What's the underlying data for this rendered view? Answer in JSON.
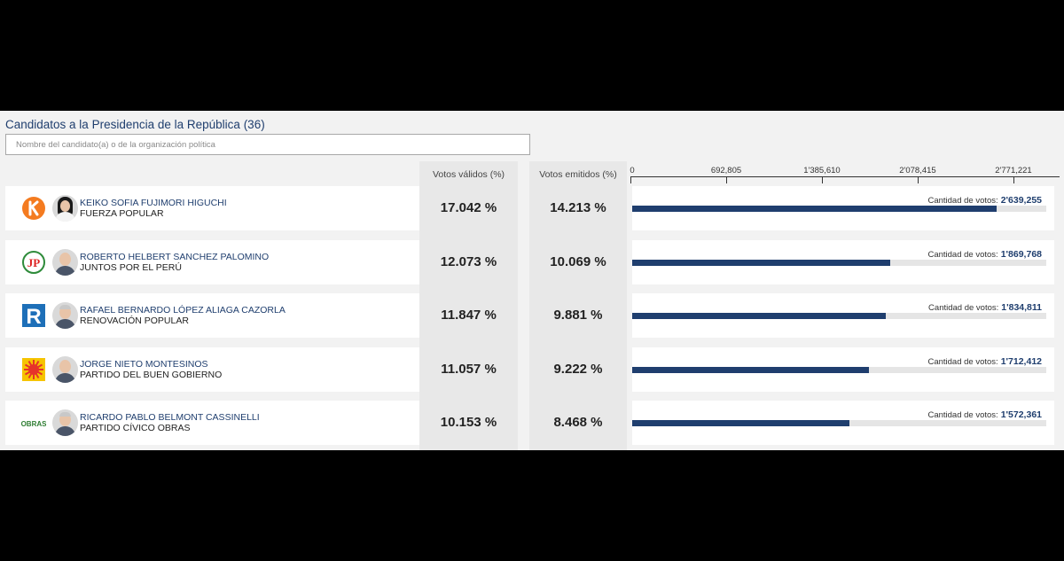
{
  "header": {
    "title": "Candidatos a la Presidencia de la República",
    "count": "(36)"
  },
  "search": {
    "placeholder": "Nombre del candidato(a) o de la organización política"
  },
  "columns": {
    "validos": "Votos válidos (%)",
    "emitidos": "Votos emitidos (%)"
  },
  "axis": {
    "max": 2771221,
    "ticks": [
      {
        "value": 0,
        "label": "0"
      },
      {
        "value": 692805,
        "label": "692,805"
      },
      {
        "value": 1385610,
        "label": "1'385,610"
      },
      {
        "value": 2078415,
        "label": "2'078,415"
      },
      {
        "value": 2771221,
        "label": "2'771,221"
      }
    ]
  },
  "votes_label": "Cantidad de votos:",
  "candidates": [
    {
      "name": "KEIKO SOFIA FUJIMORI HIGUCHI",
      "party": "FUERZA POPULAR",
      "validos": "17.042 %",
      "emitidos": "14.213 %",
      "votes": 2639255,
      "votes_label": "2'639,255",
      "logo_icon": "fuerza-popular-k-icon",
      "photo": "female"
    },
    {
      "name": "ROBERTO HELBERT SANCHEZ PALOMINO",
      "party": "JUNTOS POR EL PERÚ",
      "validos": "12.073 %",
      "emitidos": "10.069 %",
      "votes": 1869768,
      "votes_label": "1'869,768",
      "logo_icon": "juntos-por-el-peru-jp-icon",
      "photo": "male"
    },
    {
      "name": "RAFAEL BERNARDO LÓPEZ ALIAGA CAZORLA",
      "party": "RENOVACIÓN POPULAR",
      "validos": "11.847 %",
      "emitidos": "9.881 %",
      "votes": 1834811,
      "votes_label": "1'834,811",
      "logo_icon": "renovacion-popular-r-icon",
      "photo": "older"
    },
    {
      "name": "JORGE NIETO MONTESINOS",
      "party": "PARTIDO DEL BUEN GOBIERNO",
      "validos": "11.057 %",
      "emitidos": "9.222 %",
      "votes": 1712412,
      "votes_label": "1'712,412",
      "logo_icon": "buen-gobierno-sun-icon",
      "photo": "male"
    },
    {
      "name": "RICARDO PABLO BELMONT CASSINELLI",
      "party": "PARTIDO CÍVICO OBRAS",
      "validos": "10.153 %",
      "emitidos": "8.468 %",
      "votes": 1572361,
      "votes_label": "1'572,361",
      "logo_icon": "obras-text-icon",
      "logo_text": "OBRAS",
      "photo": "older"
    }
  ],
  "colors": {
    "primary": "#1f3e6e",
    "track": "#e5e5e5",
    "fuerza_popular": "#f47b20",
    "juntos_peru": "#2e8b3a",
    "renovacion": "#1d6fb8",
    "buen_gobierno": "#e6332a",
    "obras": "#2e7d32"
  }
}
